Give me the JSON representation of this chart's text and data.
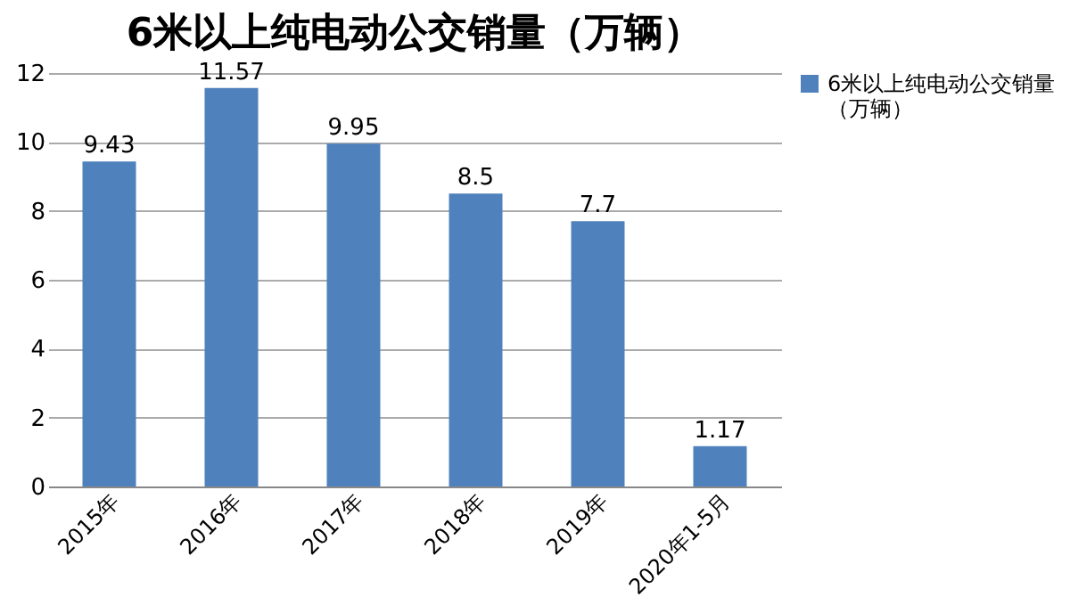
{
  "chart_data": {
    "type": "bar",
    "title": "6米以上纯电动公交销量（万辆）",
    "categories": [
      "2015年",
      "2016年",
      "2017年",
      "2018年",
      "2019年",
      "2020年1-5月"
    ],
    "series": [
      {
        "name": "6米以上纯电动公交销量（万辆）",
        "color": "#4f81bd",
        "values": [
          9.43,
          11.57,
          9.95,
          8.5,
          7.7,
          1.17
        ]
      }
    ],
    "ylim": [
      0,
      12
    ],
    "yticks": [
      0,
      2,
      4,
      6,
      8,
      10,
      12
    ],
    "grid": "y",
    "data_labels": true,
    "legend": "right"
  }
}
